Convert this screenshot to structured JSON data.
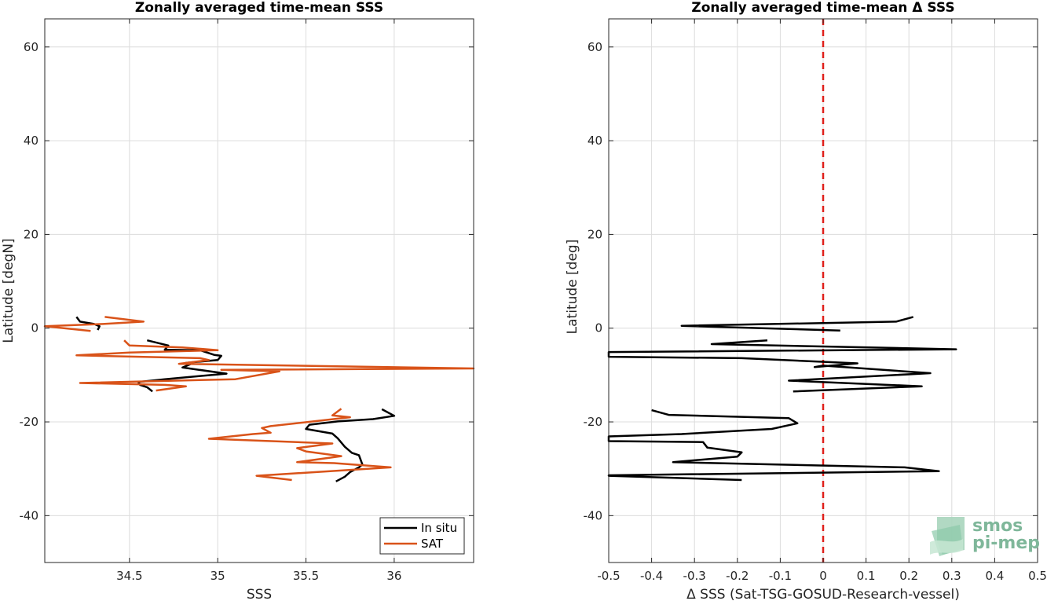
{
  "chart_data": [
    {
      "type": "line",
      "title": "Zonally averaged time-mean SSS",
      "xlabel": "SSS",
      "ylabel": "Latitude [degN]",
      "xlim": [
        34.02,
        36.45
      ],
      "ylim": [
        -50,
        66
      ],
      "xticks": [
        34.5,
        35,
        35.5,
        36
      ],
      "xtick_labels": [
        "34.5",
        "35",
        "35.5",
        "36"
      ],
      "yticks": [
        -40,
        -20,
        0,
        20,
        40,
        60
      ],
      "ytick_labels": [
        "-40",
        "-20",
        "0",
        "20",
        "40",
        "60"
      ],
      "grid": true,
      "legend_position": "bottom-right",
      "series": [
        {
          "name": "In situ",
          "color": "#000000",
          "points": [
            [
              34.2,
              2.4
            ],
            [
              34.22,
              1.4
            ],
            [
              34.3,
              0.9
            ],
            [
              34.33,
              0.4
            ],
            [
              34.32,
              -0.4
            ],
            [
              null,
              null
            ],
            [
              34.6,
              -2.6
            ],
            [
              34.72,
              -3.7
            ],
            [
              34.7,
              -4.6
            ],
            [
              34.9,
              -4.7
            ],
            [
              34.98,
              -5.7
            ],
            [
              35.02,
              -5.9
            ],
            [
              35.0,
              -6.8
            ],
            [
              34.82,
              -7.4
            ],
            [
              34.85,
              -7.6
            ],
            [
              34.8,
              -8.4
            ],
            [
              35.05,
              -9.7
            ],
            [
              34.9,
              -10.2
            ],
            [
              34.7,
              -10.9
            ],
            [
              34.55,
              -11.5
            ],
            [
              34.56,
              -12.1
            ],
            [
              34.6,
              -12.6
            ],
            [
              34.63,
              -13.5
            ],
            [
              null,
              null
            ],
            [
              35.93,
              -17.3
            ],
            [
              36.0,
              -18.7
            ],
            [
              35.88,
              -19.4
            ],
            [
              35.68,
              -19.9
            ],
            [
              35.52,
              -20.6
            ],
            [
              35.5,
              -21.5
            ],
            [
              35.65,
              -22.5
            ],
            [
              35.68,
              -23.5
            ],
            [
              35.72,
              -25.3
            ],
            [
              35.76,
              -26.6
            ],
            [
              35.8,
              -27.1
            ],
            [
              35.82,
              -29.1
            ],
            [
              35.8,
              -29.7
            ],
            [
              35.75,
              -30.7
            ],
            [
              35.72,
              -31.7
            ],
            [
              35.67,
              -32.7
            ]
          ]
        },
        {
          "name": "SAT",
          "color": "#d95319",
          "points": [
            [
              34.36,
              2.4
            ],
            [
              34.58,
              1.4
            ],
            [
              34.35,
              0.9
            ],
            [
              34.02,
              0.4
            ],
            [
              34.28,
              -0.6
            ],
            [
              null,
              null
            ],
            [
              34.47,
              -2.6
            ],
            [
              34.5,
              -3.7
            ],
            [
              34.8,
              -4.1
            ],
            [
              35.0,
              -4.7
            ],
            [
              34.5,
              -5.2
            ],
            [
              34.2,
              -5.8
            ],
            [
              34.9,
              -6.4
            ],
            [
              34.95,
              -6.8
            ],
            [
              34.78,
              -7.6
            ],
            [
              36.45,
              -8.6
            ],
            [
              35.02,
              -8.9
            ],
            [
              35.35,
              -9.2
            ],
            [
              35.1,
              -10.9
            ],
            [
              34.22,
              -11.7
            ],
            [
              34.7,
              -12.1
            ],
            [
              34.82,
              -12.4
            ],
            [
              34.65,
              -13.3
            ],
            [
              null,
              null
            ],
            [
              35.7,
              -17.2
            ],
            [
              35.65,
              -18.6
            ],
            [
              35.75,
              -19.0
            ],
            [
              35.3,
              -20.9
            ],
            [
              35.25,
              -21.3
            ],
            [
              35.3,
              -22.3
            ],
            [
              35.2,
              -22.6
            ],
            [
              34.95,
              -23.6
            ],
            [
              35.65,
              -24.6
            ],
            [
              35.45,
              -25.6
            ],
            [
              35.5,
              -26.3
            ],
            [
              35.7,
              -27.3
            ],
            [
              35.45,
              -28.6
            ],
            [
              35.66,
              -28.8
            ],
            [
              35.98,
              -29.7
            ],
            [
              35.22,
              -31.5
            ],
            [
              35.42,
              -32.4
            ]
          ]
        }
      ]
    },
    {
      "type": "line",
      "title": "Zonally averaged time-mean Δ SSS",
      "xlabel": "Δ SSS (Sat-TSG-GOSUD-Research-vessel)",
      "ylabel": "Latitude [deg]",
      "xlim": [
        -0.5,
        0.5
      ],
      "ylim": [
        -50,
        66
      ],
      "xticks": [
        -0.5,
        -0.4,
        -0.3,
        -0.2,
        -0.1,
        0,
        0.1,
        0.2,
        0.3,
        0.4,
        0.5
      ],
      "xtick_labels": [
        "-0.5",
        "-0.4",
        "-0.3",
        "-0.2",
        "-0.1",
        "0",
        "0.1",
        "0.2",
        "0.3",
        "0.4",
        "0.5"
      ],
      "yticks": [
        -40,
        -20,
        0,
        20,
        40,
        60
      ],
      "ytick_labels": [
        "-40",
        "-20",
        "0",
        "20",
        "40",
        "60"
      ],
      "grid": true,
      "reference_line": {
        "x": 0,
        "style": "dashed",
        "color": "#e0201b"
      },
      "series": [
        {
          "color": "#000000",
          "points": [
            [
              0.21,
              2.4
            ],
            [
              0.17,
              1.4
            ],
            [
              -0.33,
              0.5
            ],
            [
              0.04,
              -0.5
            ],
            [
              null,
              null
            ],
            [
              -0.13,
              -2.6
            ],
            [
              -0.26,
              -3.4
            ],
            [
              0.31,
              -4.5
            ],
            [
              -0.5,
              -5.1
            ],
            [
              -0.5,
              -6.1
            ],
            [
              -0.19,
              -6.4
            ],
            [
              0.08,
              -7.5
            ],
            [
              -0.02,
              -8.3
            ],
            [
              0.0,
              -8.0
            ],
            [
              0.25,
              -9.6
            ],
            [
              -0.08,
              -11.2
            ],
            [
              0.23,
              -12.4
            ],
            [
              -0.07,
              -13.5
            ],
            [
              null,
              null
            ],
            [
              -0.4,
              -17.5
            ],
            [
              -0.36,
              -18.5
            ],
            [
              -0.08,
              -19.2
            ],
            [
              -0.06,
              -20.3
            ],
            [
              -0.12,
              -21.5
            ],
            [
              -0.33,
              -22.6
            ],
            [
              -0.5,
              -23.1
            ],
            [
              -0.5,
              -24.1
            ],
            [
              -0.28,
              -24.3
            ],
            [
              -0.27,
              -25.5
            ],
            [
              -0.19,
              -26.5
            ],
            [
              -0.2,
              -27.4
            ],
            [
              -0.35,
              -28.6
            ],
            [
              0.19,
              -29.7
            ],
            [
              0.27,
              -30.5
            ],
            [
              -0.5,
              -31.4
            ],
            [
              -0.5,
              -31.5
            ],
            [
              -0.19,
              -32.4
            ]
          ]
        }
      ]
    }
  ],
  "legend": {
    "items": [
      "In situ",
      "SAT"
    ]
  },
  "logo": {
    "line1": "smos",
    "line2": "pi-mep"
  }
}
